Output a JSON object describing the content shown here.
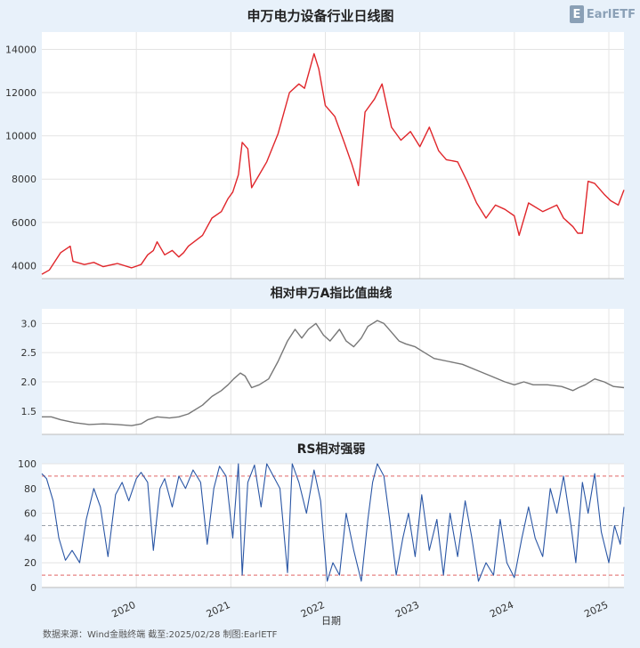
{
  "logo": {
    "mark": "E",
    "text": "EarlETF"
  },
  "footer": "数据来源：Wind金融终端 截至:2025/02/28 制图:EarlETF",
  "x_axis": {
    "label": "日期",
    "ticks": [
      {
        "label": "2020",
        "year": 2020.0
      },
      {
        "label": "2021",
        "year": 2021.0
      },
      {
        "label": "2022",
        "year": 2022.0
      },
      {
        "label": "2023",
        "year": 2023.0
      },
      {
        "label": "2024",
        "year": 2024.0
      },
      {
        "label": "2025",
        "year": 2025.0
      }
    ],
    "range": [
      2019.0,
      2025.16
    ]
  },
  "colors": {
    "price": "#e0262b",
    "ratio": "#777777",
    "rs": "#2a56a5",
    "ref_high": "#e06666",
    "ref_mid": "#9aa0aa",
    "panel": "#ffffff",
    "grid": "#e4e4e4"
  },
  "chart_data": [
    {
      "type": "line",
      "title": "申万电力设备行业日线图",
      "ylim": [
        3400,
        14800
      ],
      "yticks": [
        4000,
        6000,
        8000,
        10000,
        12000,
        14000
      ],
      "series": [
        {
          "x": [
            2019.0,
            2019.08,
            2019.2,
            2019.3,
            2019.33,
            2019.45,
            2019.55,
            2019.65,
            2019.8,
            2019.95,
            2020.05,
            2020.12,
            2020.18,
            2020.22,
            2020.3,
            2020.38,
            2020.45,
            2020.5,
            2020.55,
            2020.7,
            2020.8,
            2020.9,
            2020.97,
            2021.02,
            2021.08,
            2021.12,
            2021.18,
            2021.22,
            2021.3,
            2021.38,
            2021.5,
            2021.62,
            2021.72,
            2021.78,
            2021.83,
            2021.88,
            2021.93,
            2022.0,
            2022.1,
            2022.2,
            2022.28,
            2022.35,
            2022.42,
            2022.52,
            2022.6,
            2022.7,
            2022.8,
            2022.9,
            2023.0,
            2023.1,
            2023.2,
            2023.28,
            2023.4,
            2023.5,
            2023.6,
            2023.7,
            2023.8,
            2023.9,
            2024.0,
            2024.05,
            2024.15,
            2024.3,
            2024.45,
            2024.52,
            2024.62,
            2024.67,
            2024.72,
            2024.78,
            2024.85,
            2024.95,
            2025.02,
            2025.1,
            2025.16
          ],
          "y": [
            3600,
            3800,
            4600,
            4900,
            4200,
            4050,
            4150,
            3950,
            4100,
            3900,
            4050,
            4500,
            4700,
            5100,
            4500,
            4700,
            4400,
            4600,
            4900,
            5400,
            6200,
            6500,
            7100,
            7400,
            8200,
            9700,
            9400,
            7600,
            8200,
            8800,
            10100,
            12000,
            12400,
            12200,
            13000,
            13800,
            13100,
            11400,
            10900,
            9700,
            8700,
            7700,
            11100,
            11700,
            12400,
            10400,
            9800,
            10200,
            9500,
            10400,
            9300,
            8900,
            8800,
            7900,
            6900,
            6200,
            6800,
            6600,
            6300,
            5400,
            6900,
            6500,
            6800,
            6200,
            5800,
            5500,
            5500,
            7900,
            7800,
            7300,
            7000,
            6800,
            7500
          ]
        }
      ]
    },
    {
      "type": "line",
      "title": "相对申万A指比值曲线",
      "ylim": [
        1.1,
        3.25
      ],
      "yticks": [
        1.5,
        2.0,
        2.5,
        3.0
      ],
      "series": [
        {
          "x": [
            2019.0,
            2019.1,
            2019.2,
            2019.35,
            2019.5,
            2019.65,
            2019.8,
            2019.95,
            2020.05,
            2020.12,
            2020.22,
            2020.35,
            2020.45,
            2020.55,
            2020.7,
            2020.8,
            2020.9,
            2020.97,
            2021.03,
            2021.1,
            2021.15,
            2021.22,
            2021.3,
            2021.4,
            2021.5,
            2021.6,
            2021.68,
            2021.75,
            2021.82,
            2021.9,
            2021.98,
            2022.05,
            2022.15,
            2022.22,
            2022.3,
            2022.38,
            2022.45,
            2022.55,
            2022.62,
            2022.7,
            2022.78,
            2022.85,
            2022.95,
            2023.05,
            2023.15,
            2023.3,
            2023.45,
            2023.6,
            2023.75,
            2023.9,
            2024.0,
            2024.1,
            2024.2,
            2024.35,
            2024.5,
            2024.62,
            2024.68,
            2024.75,
            2024.85,
            2024.95,
            2025.05,
            2025.16
          ],
          "y": [
            1.4,
            1.4,
            1.35,
            1.3,
            1.27,
            1.28,
            1.27,
            1.25,
            1.28,
            1.35,
            1.4,
            1.38,
            1.4,
            1.45,
            1.6,
            1.75,
            1.85,
            1.95,
            2.05,
            2.15,
            2.1,
            1.9,
            1.95,
            2.05,
            2.35,
            2.7,
            2.9,
            2.75,
            2.9,
            3.0,
            2.8,
            2.7,
            2.9,
            2.7,
            2.6,
            2.75,
            2.95,
            3.05,
            3.0,
            2.85,
            2.7,
            2.65,
            2.6,
            2.5,
            2.4,
            2.35,
            2.3,
            2.2,
            2.1,
            2.0,
            1.95,
            2.0,
            1.95,
            1.95,
            1.92,
            1.85,
            1.9,
            1.95,
            2.05,
            2.0,
            1.92,
            1.9
          ]
        }
      ]
    },
    {
      "type": "line",
      "title": "RS相对强弱",
      "ylim": [
        0,
        100
      ],
      "yticks": [
        0,
        20,
        40,
        60,
        80,
        100
      ],
      "reference_lines": [
        90,
        50,
        10
      ],
      "series": [
        {
          "x": [
            2019.0,
            2019.05,
            2019.12,
            2019.18,
            2019.25,
            2019.32,
            2019.4,
            2019.47,
            2019.55,
            2019.62,
            2019.7,
            2019.78,
            2019.85,
            2019.92,
            2020.0,
            2020.05,
            2020.12,
            2020.18,
            2020.25,
            2020.3,
            2020.38,
            2020.45,
            2020.52,
            2020.6,
            2020.68,
            2020.75,
            2020.82,
            2020.88,
            2020.95,
            2021.02,
            2021.08,
            2021.12,
            2021.18,
            2021.25,
            2021.32,
            2021.38,
            2021.45,
            2021.52,
            2021.6,
            2021.65,
            2021.72,
            2021.8,
            2021.88,
            2021.95,
            2022.02,
            2022.08,
            2022.15,
            2022.22,
            2022.3,
            2022.38,
            2022.45,
            2022.5,
            2022.55,
            2022.62,
            2022.68,
            2022.75,
            2022.82,
            2022.88,
            2022.95,
            2023.02,
            2023.1,
            2023.18,
            2023.25,
            2023.32,
            2023.4,
            2023.48,
            2023.55,
            2023.62,
            2023.7,
            2023.78,
            2023.85,
            2023.92,
            2024.0,
            2024.08,
            2024.15,
            2024.22,
            2024.3,
            2024.38,
            2024.45,
            2024.52,
            2024.6,
            2024.65,
            2024.72,
            2024.78,
            2024.85,
            2024.92,
            2025.0,
            2025.06,
            2025.12,
            2025.16
          ],
          "y": [
            92,
            88,
            70,
            40,
            22,
            30,
            20,
            55,
            80,
            65,
            25,
            75,
            85,
            70,
            88,
            93,
            85,
            30,
            80,
            88,
            65,
            90,
            80,
            95,
            85,
            35,
            80,
            98,
            90,
            40,
            100,
            10,
            85,
            99,
            65,
            100,
            90,
            80,
            12,
            100,
            85,
            60,
            95,
            70,
            5,
            20,
            10,
            60,
            30,
            5,
            55,
            85,
            100,
            90,
            55,
            10,
            40,
            60,
            25,
            75,
            30,
            55,
            10,
            60,
            25,
            70,
            40,
            5,
            20,
            10,
            55,
            20,
            8,
            40,
            65,
            40,
            25,
            80,
            60,
            90,
            50,
            20,
            85,
            60,
            92,
            45,
            20,
            50,
            35,
            65
          ]
        }
      ]
    }
  ]
}
